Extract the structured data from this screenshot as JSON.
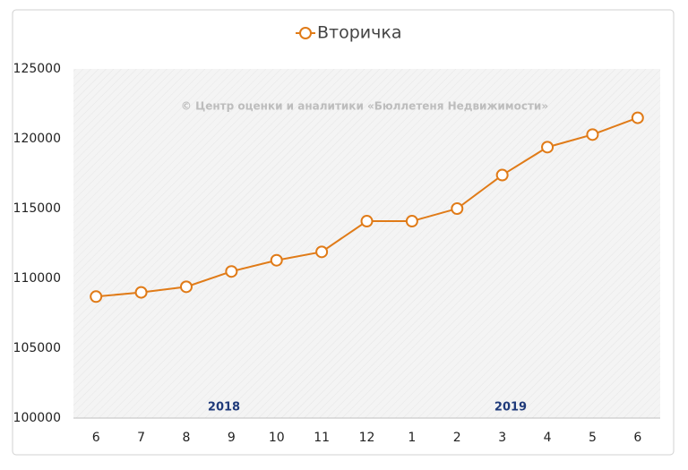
{
  "chart_data": {
    "type": "line",
    "categories": [
      "6",
      "7",
      "8",
      "9",
      "10",
      "11",
      "12",
      "1",
      "2",
      "3",
      "4",
      "5",
      "6"
    ],
    "series": [
      {
        "name": "Вторичка",
        "color": "#e07b18",
        "values": [
          108700,
          109000,
          109400,
          110500,
          111300,
          111900,
          114100,
          114100,
          115000,
          117400,
          119400,
          120300,
          121500
        ]
      }
    ],
    "ylim": [
      100000,
      125000
    ],
    "yticks": [
      100000,
      105000,
      110000,
      115000,
      120000,
      125000
    ],
    "annotations": [
      "© Центр оценки и аналитики «Бюллетеня Недвижимости»",
      "2018",
      "2019"
    ]
  }
}
